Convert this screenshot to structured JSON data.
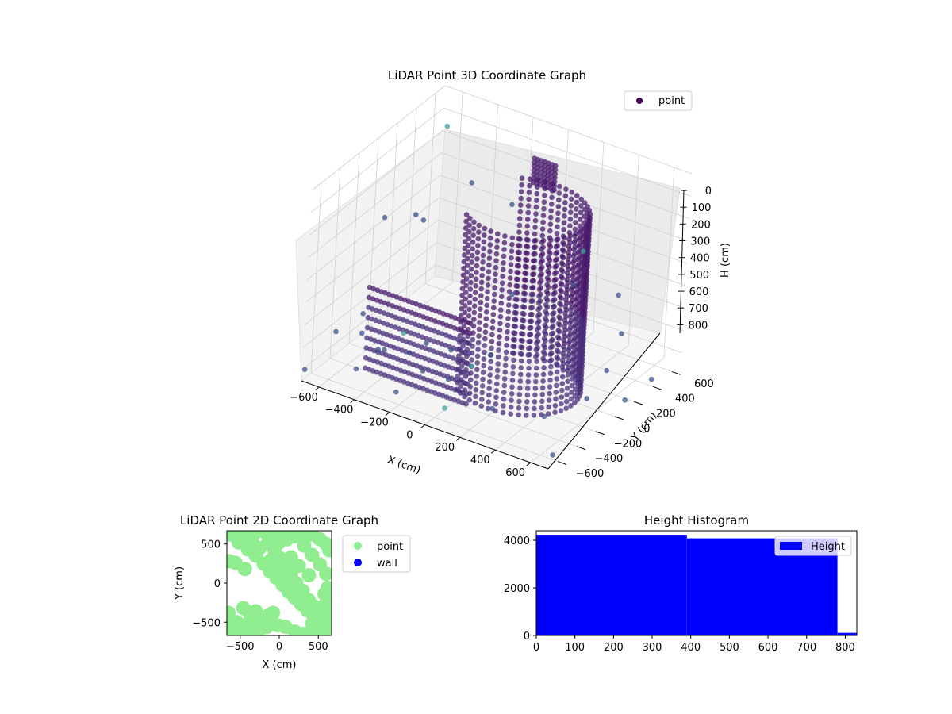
{
  "chart_data": [
    {
      "type": "scatter",
      "title": "LiDAR Point 3D Coordinate Graph",
      "xlabel": "X (cm)",
      "ylabel": "Y (cm)",
      "zlabel": "H (cm)",
      "xlim": [
        -700,
        700
      ],
      "ylim": [
        -700,
        700
      ],
      "zlim": [
        0,
        850
      ],
      "z_inverted": true,
      "x_ticks": [
        -600,
        -400,
        -200,
        0,
        200,
        400,
        600
      ],
      "y_ticks": [
        -600,
        -400,
        -200,
        0,
        200,
        400,
        600
      ],
      "z_ticks": [
        0,
        100,
        200,
        300,
        400,
        500,
        600,
        700,
        800
      ],
      "grid": true,
      "legend": {
        "position": "top-right",
        "entries": [
          "point"
        ]
      },
      "series": [
        {
          "name": "point",
          "color": "#440154",
          "structures": {
            "curved_wall": {
              "center": [
                230,
                -170
              ],
              "radius": 320,
              "angle_deg": [
                -130,
                125
              ],
              "height": [
                0,
                780
              ]
            },
            "straight_wall": {
              "x_range": [
                -440,
                140
              ],
              "y_value": -520,
              "height": [
                0,
                780
              ]
            },
            "low_cluster": {
              "center": [
                -80,
                620
              ],
              "height": [
                140,
                260
              ]
            }
          },
          "sample_points": [
            [
              -650,
              -450,
              700
            ],
            [
              -580,
              -300,
              650
            ],
            [
              -520,
              -420,
              680
            ],
            [
              -460,
              -350,
              760
            ],
            [
              -400,
              -200,
              720
            ],
            [
              -360,
              -480,
              690
            ],
            [
              -300,
              -320,
              740
            ],
            [
              -240,
              -260,
              700
            ],
            [
              -180,
              -400,
              760
            ],
            [
              -120,
              -220,
              710
            ],
            [
              -60,
              -350,
              780
            ],
            [
              20,
              -260,
              730
            ],
            [
              80,
              -180,
              690
            ],
            [
              -620,
              300,
              420
            ],
            [
              -600,
              -80,
              300
            ],
            [
              -500,
              150,
              360
            ],
            [
              -380,
              420,
              250
            ],
            [
              -200,
              520,
              330
            ],
            [
              150,
              640,
              480
            ],
            [
              420,
              520,
              560
            ],
            [
              560,
              300,
              620
            ],
            [
              610,
              60,
              690
            ],
            [
              640,
              -200,
              720
            ],
            [
              520,
              -420,
              760
            ],
            [
              300,
              -560,
              740
            ],
            [
              80,
              -650,
              770
            ],
            [
              -200,
              -640,
              780
            ],
            [
              -450,
              -600,
              760
            ],
            [
              680,
              -620,
              820
            ],
            [
              -690,
              -690,
              800
            ],
            [
              700,
              100,
              810
            ],
            [
              690,
              400,
              820
            ],
            [
              -650,
              650,
              150
            ],
            [
              -40,
              260,
              600
            ],
            [
              240,
              380,
              520
            ]
          ]
        }
      ]
    },
    {
      "type": "scatter",
      "title": "LiDAR Point 2D Coordinate Graph",
      "xlabel": "X (cm)",
      "ylabel": "Y (cm)",
      "xlim": [
        -670,
        670
      ],
      "ylim": [
        -670,
        670
      ],
      "x_ticks": [
        -500,
        0,
        500
      ],
      "y_ticks": [
        -500,
        0,
        500
      ],
      "legend": {
        "position": "outside-right",
        "entries": [
          "point",
          "wall"
        ]
      },
      "series": [
        {
          "name": "point",
          "color": "#90ee90",
          "points": [
            [
              -620,
              620
            ],
            [
              -520,
              520
            ],
            [
              -400,
              430
            ],
            [
              -300,
              350
            ],
            [
              -200,
              250
            ],
            [
              -120,
              150
            ],
            [
              -40,
              70
            ],
            [
              40,
              -20
            ],
            [
              120,
              -110
            ],
            [
              200,
              -190
            ],
            [
              280,
              -270
            ],
            [
              360,
              -350
            ],
            [
              440,
              -430
            ],
            [
              520,
              -510
            ],
            [
              600,
              -590
            ],
            [
              -560,
              650
            ],
            [
              -430,
              650
            ],
            [
              -300,
              650
            ],
            [
              -180,
              650
            ],
            [
              -60,
              650
            ],
            [
              60,
              650
            ],
            [
              180,
              650
            ],
            [
              300,
              650
            ],
            [
              420,
              620
            ],
            [
              520,
              560
            ],
            [
              600,
              500
            ],
            [
              640,
              420
            ],
            [
              -640,
              280
            ],
            [
              -560,
              260
            ],
            [
              -440,
              180
            ],
            [
              -650,
              -380
            ],
            [
              -620,
              -480
            ],
            [
              -640,
              -580
            ],
            [
              -560,
              -620
            ],
            [
              -460,
              -640
            ],
            [
              -360,
              -630
            ],
            [
              -260,
              -600
            ],
            [
              -160,
              -560
            ],
            [
              -460,
              -320
            ],
            [
              -380,
              -380
            ],
            [
              -300,
              -360
            ],
            [
              -240,
              -460
            ],
            [
              -150,
              -420
            ],
            [
              -80,
              -380
            ],
            [
              -20,
              -540
            ],
            [
              80,
              -560
            ],
            [
              200,
              -620
            ],
            [
              300,
              -650
            ],
            [
              420,
              -650
            ],
            [
              560,
              -600
            ],
            [
              640,
              -520
            ],
            [
              640,
              -380
            ],
            [
              600,
              -250
            ],
            [
              580,
              -140
            ],
            [
              520,
              -380
            ],
            [
              450,
              -300
            ],
            [
              380,
              -220
            ],
            [
              300,
              -100
            ],
            [
              220,
              0
            ],
            [
              150,
              100
            ],
            [
              80,
              220
            ],
            [
              10,
              320
            ],
            [
              -60,
              420
            ],
            [
              -140,
              520
            ],
            [
              0,
              520
            ],
            [
              100,
              560
            ],
            [
              200,
              600
            ],
            [
              320,
              480
            ],
            [
              420,
              360
            ],
            [
              520,
              240
            ],
            [
              600,
              120
            ],
            [
              380,
              100
            ],
            [
              250,
              220
            ],
            [
              150,
              330
            ],
            [
              -250,
              450
            ],
            [
              -350,
              560
            ],
            [
              -100,
              300
            ],
            [
              -30,
              180
            ],
            [
              60,
              60
            ],
            [
              160,
              -40
            ],
            [
              260,
              -150
            ],
            [
              350,
              -260
            ],
            [
              420,
              -520
            ],
            [
              560,
              -460
            ],
            [
              -540,
              -500
            ],
            [
              -400,
              -520
            ],
            [
              -300,
              -520
            ],
            [
              -200,
              -520
            ],
            [
              -100,
              -520
            ],
            [
              620,
              -60
            ]
          ]
        },
        {
          "name": "wall",
          "color": "#0000ff",
          "points": []
        }
      ]
    },
    {
      "type": "bar",
      "title": "Height Histogram",
      "xlabel": "",
      "ylabel": "",
      "xlim": [
        0,
        830
      ],
      "ylim": [
        0,
        4400
      ],
      "x_ticks": [
        0,
        100,
        200,
        300,
        400,
        500,
        600,
        700,
        800
      ],
      "y_ticks": [
        0,
        2000,
        4000
      ],
      "legend": {
        "position": "top-right",
        "entries": [
          "Height"
        ]
      },
      "series": [
        {
          "name": "Height",
          "color": "#0000ff",
          "bins": [
            {
              "start": 0,
              "end": 390,
              "count": 4230
            },
            {
              "start": 390,
              "end": 780,
              "count": 4080
            },
            {
              "start": 780,
              "end": 830,
              "count": 110
            }
          ]
        }
      ]
    }
  ]
}
